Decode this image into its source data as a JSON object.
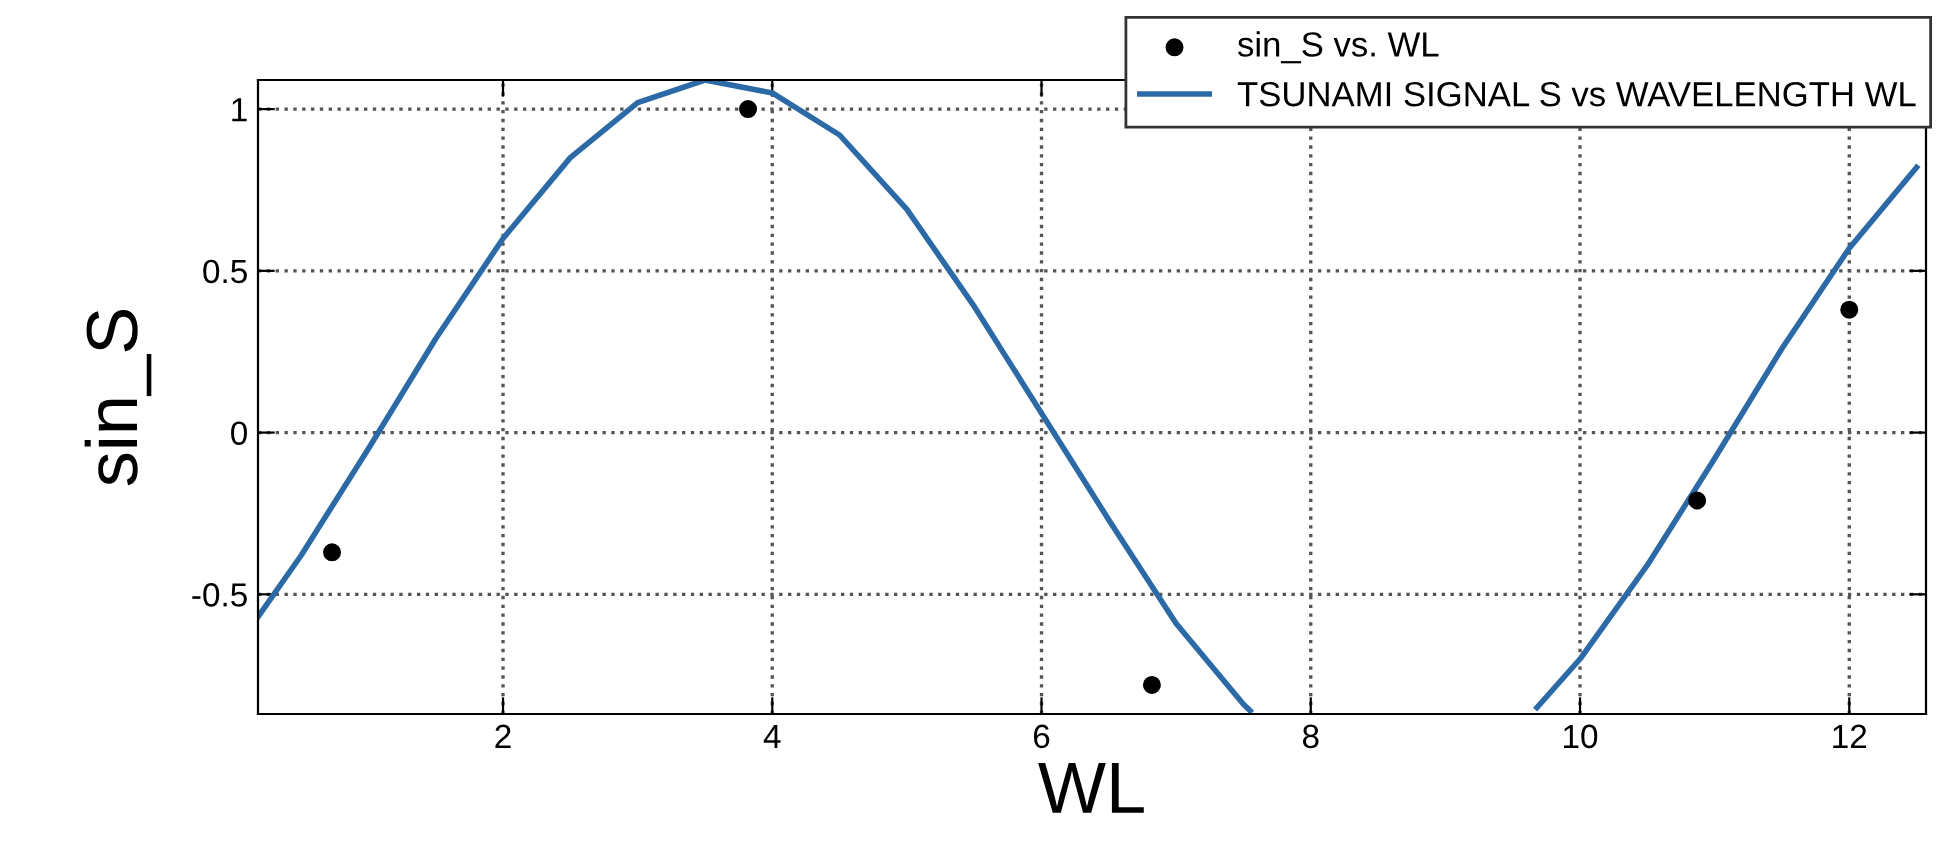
{
  "chart_data": {
    "type": "scatter",
    "xlabel": "WL",
    "ylabel": "sin_S",
    "xlim": [
      0.18,
      12.57
    ],
    "ylim": [
      -0.87,
      1.09
    ],
    "xticks": [
      2,
      4,
      6,
      8,
      10,
      12
    ],
    "yticks": [
      -0.5,
      0,
      0.5,
      1
    ],
    "grid": true,
    "legend": "top right",
    "series": [
      {
        "name": "sin_S vs. WL",
        "marker": "circle",
        "color": "#000000",
        "x": [
          0.73,
          3.82,
          6.82,
          10.87,
          12.0
        ],
        "values": [
          -0.37,
          1.0,
          -0.78,
          -0.21,
          0.38
        ]
      },
      {
        "name": "TSUNAMI SIGNAL S vs WAVELENGTH WL",
        "type": "line",
        "marker": "none",
        "line_style": "solid",
        "color": "#2b6aa6",
        "x": [
          0.18,
          0.5,
          1.0,
          1.5,
          2.0,
          2.5,
          3.0,
          3.5,
          4.0,
          4.5,
          5.0,
          5.5,
          6.0,
          6.5,
          7.0,
          7.5,
          7.55,
          8.6,
          9.68,
          10.0,
          10.5,
          11.0,
          11.5,
          12.0,
          12.5
        ],
        "values": [
          -0.57,
          -0.38,
          -0.05,
          0.29,
          0.6,
          0.85,
          1.02,
          1.09,
          1.05,
          0.92,
          0.69,
          0.39,
          0.06,
          -0.27,
          -0.59,
          -0.84,
          -0.86,
          null,
          -0.85,
          -0.7,
          -0.41,
          -0.08,
          0.26,
          0.57,
          0.82
        ]
      }
    ]
  }
}
